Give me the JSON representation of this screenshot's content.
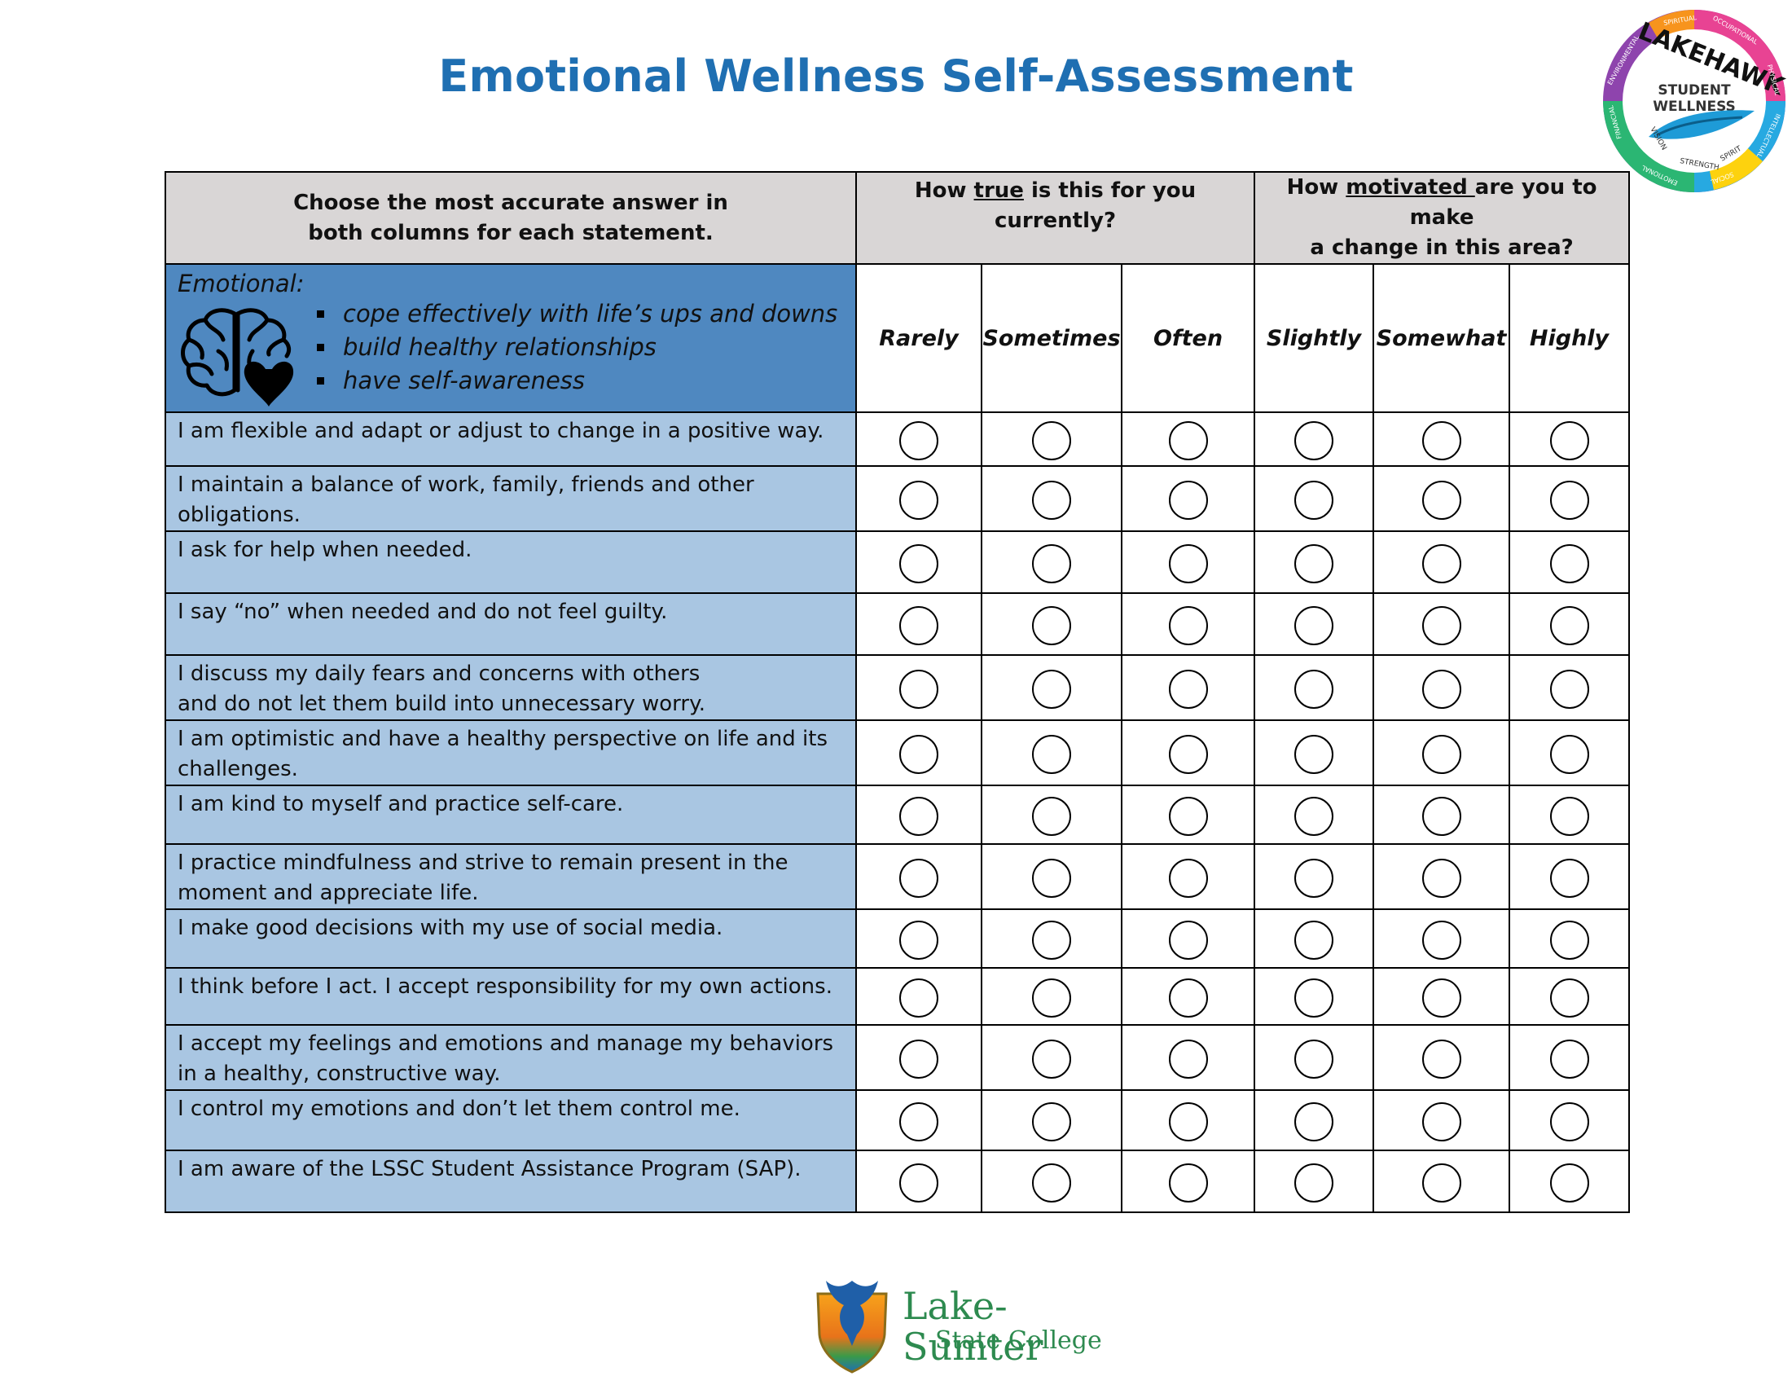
{
  "title": "Emotional Wellness Self-Assessment",
  "badge": {
    "top_text": "LAKEHAWK",
    "line1": "STUDENT",
    "line2": "WELLNESS",
    "ring_words": [
      "SPIRITUAL",
      "OCCUPATIONAL",
      "PHYSICAL",
      "INTELLECTUAL",
      "SOCIAL",
      "EMOTIONAL",
      "FINANCIAL",
      "ENVIRONMENTAL"
    ],
    "inner_words": [
      "VISION",
      "STRENGTH",
      "SPIRIT"
    ]
  },
  "header": {
    "instruction_line1": "Choose the most accurate answer in",
    "instruction_line2": "both columns for each statement.",
    "true_pre": "How ",
    "true_em": "true",
    "true_post": " is this for you currently?",
    "motiv_pre": "How ",
    "motiv_em": "motivated ",
    "motiv_post": "are you to make",
    "motiv_line2": "a change in this area?"
  },
  "emotional": {
    "label": "Emotional:",
    "bullets": [
      "cope effectively with life’s ups and downs",
      "build healthy relationships",
      "have self-awareness"
    ],
    "icon": "brain-heart-icon"
  },
  "columns": [
    "Rarely",
    "Sometimes",
    "Often",
    "Slightly",
    "Somewhat",
    "Highly"
  ],
  "statements": [
    [
      "I am flexible and adapt or adjust to change in a positive way."
    ],
    [
      "I maintain a balance of work, family, friends and other",
      "obligations."
    ],
    [
      "I ask for help when needed."
    ],
    [
      "I say “no” when needed and do not feel guilty."
    ],
    [
      "I discuss my daily fears and concerns with others",
      "and do not let them build into unnecessary worry."
    ],
    [
      "I am optimistic and have a healthy perspective on life and its",
      "challenges."
    ],
    [
      "I am kind to myself and practice self-care."
    ],
    [
      "I practice mindfulness and strive to remain present in the",
      "moment and appreciate life."
    ],
    [
      "I make good decisions with my use of social media."
    ],
    [
      "I think before I act. I accept responsibility for my own actions."
    ],
    [
      "I accept my feelings and emotions and manage my behaviors",
      "in a healthy, constructive way."
    ],
    [
      "I control my emotions and don’t let them control me."
    ],
    [
      "I am aware of the LSSC Student Assistance Program (SAP)."
    ]
  ],
  "footer": {
    "college_line1": "Lake-Sumter",
    "college_line2": "State College",
    "icon": "hawk-shield-icon"
  }
}
